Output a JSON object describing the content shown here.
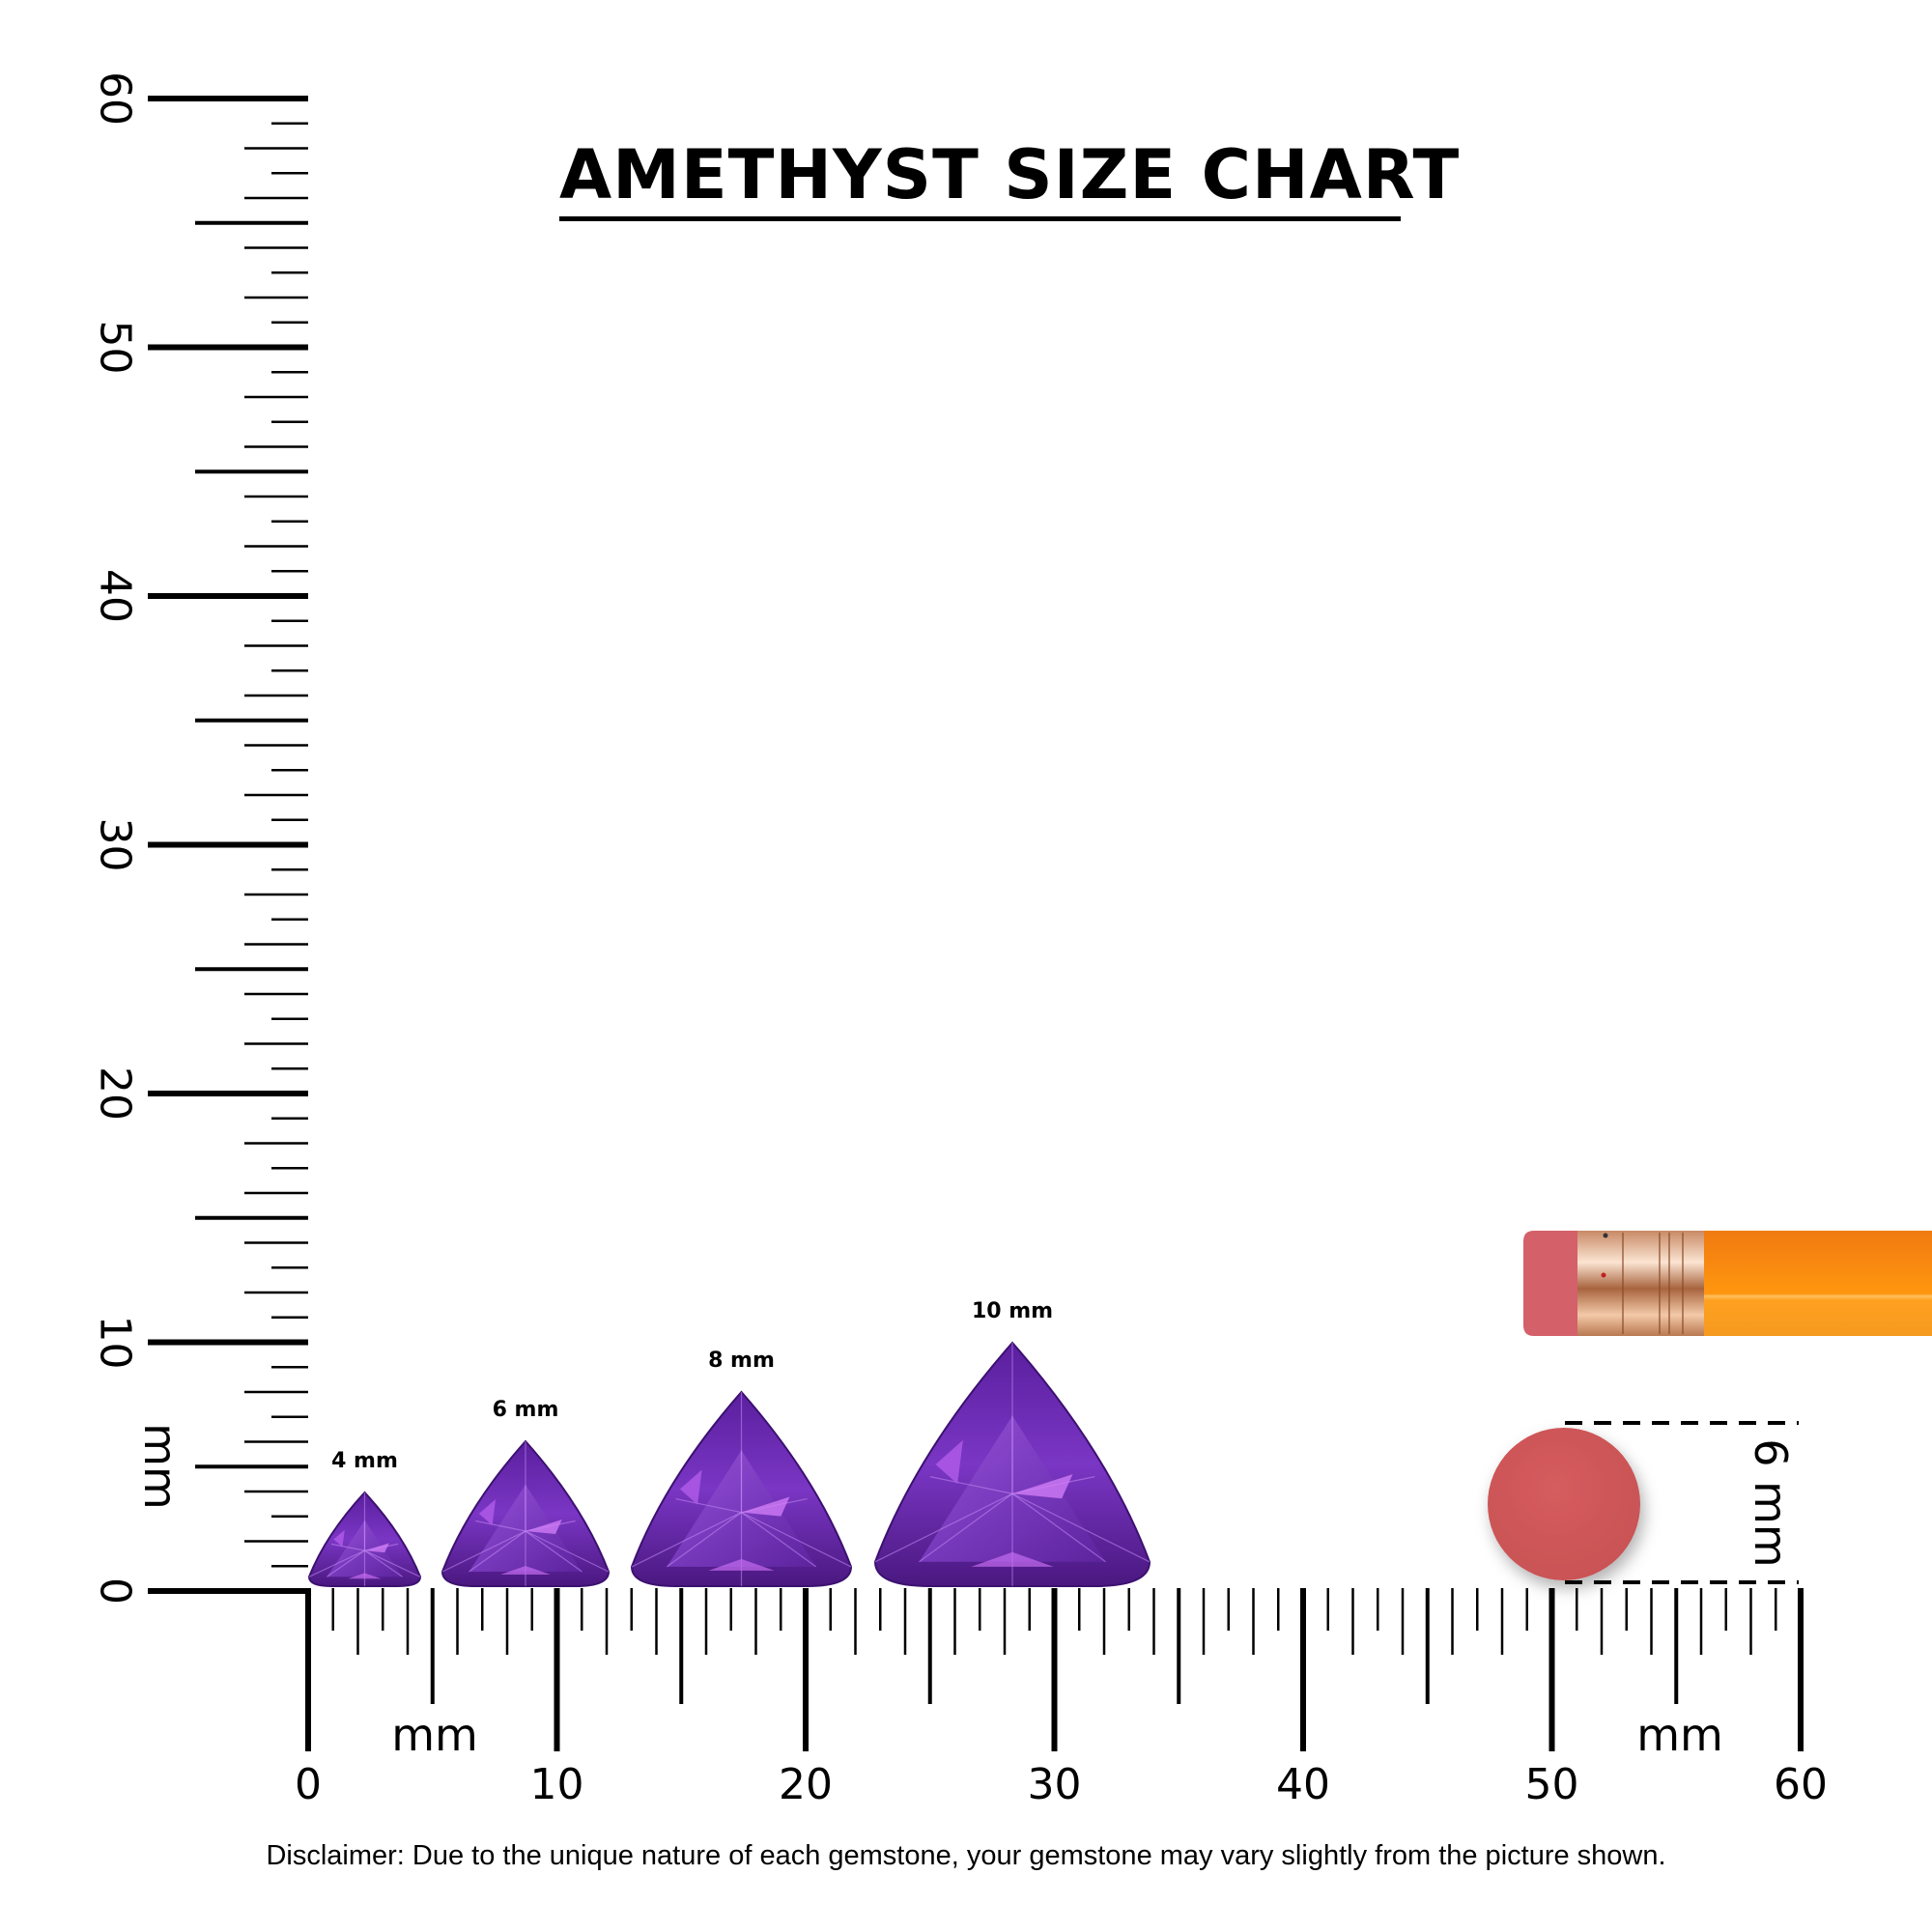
{
  "title": "AMETHYST SIZE CHART",
  "vertical_ruler": {
    "unit_label": "mm",
    "labels": [
      "0",
      "10",
      "20",
      "30",
      "40",
      "50",
      "60"
    ]
  },
  "horizontal_ruler": {
    "unit_label": "mm",
    "labels": [
      "0",
      "10",
      "20",
      "30",
      "40",
      "50",
      "60"
    ]
  },
  "gemstones": [
    {
      "label": "4 mm",
      "size_mm": 4
    },
    {
      "label": "6 mm",
      "size_mm": 6
    },
    {
      "label": "8 mm",
      "size_mm": 8
    },
    {
      "label": "10 mm",
      "size_mm": 10
    }
  ],
  "reference": {
    "object": "pencil eraser",
    "label": "6 mm",
    "size_mm": 6
  },
  "disclaimer": "Disclaimer: Due to the unique nature of each gemstone, your gemstone may vary slightly from the picture shown.",
  "colors": {
    "gem_dark": "#4a1a82",
    "gem_mid": "#6f2fb8",
    "gem_light": "#b066ee",
    "eraser": "#d45a5c",
    "pencil": "#ff9a1a",
    "ferrule": "#e0a882"
  }
}
